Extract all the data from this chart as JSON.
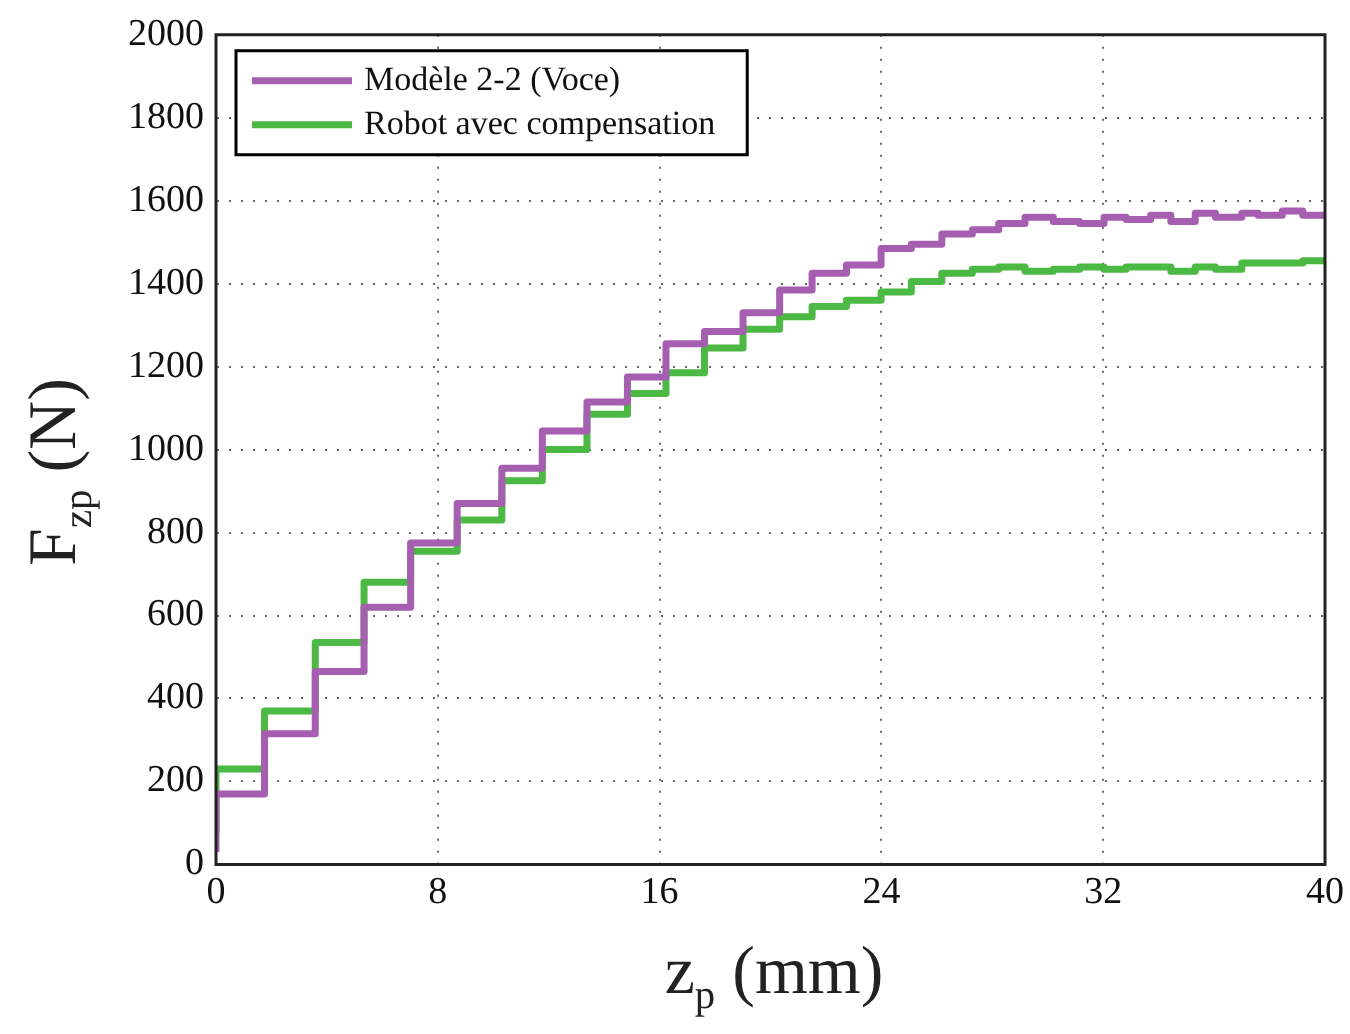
{
  "chart_data": {
    "type": "step",
    "xlabel": "z$_{p}$ (mm)",
    "ylabel": "F$_{zp}$ (N)",
    "x": [
      0,
      1.75,
      3.58,
      5.34,
      7.02,
      8.7,
      10.31,
      11.77,
      13.38,
      14.84,
      16.23,
      17.62,
      19.01,
      20.33,
      21.5,
      22.74,
      23.99,
      25.08,
      26.18,
      27.28,
      28.23,
      29.18,
      30.2,
      31.15,
      32.03,
      32.83,
      33.71,
      34.44,
      35.32,
      36.05,
      37,
      37.59,
      38.46,
      39.2,
      39.78,
      40
    ],
    "series": [
      {
        "name": "Modèle 2-2 (Voce)",
        "color": "#a65fb0",
        "values": [
          30,
          170,
          315,
          465,
          620,
          775,
          870,
          955,
          1045,
          1115,
          1175,
          1255,
          1285,
          1330,
          1385,
          1425,
          1445,
          1485,
          1495,
          1520,
          1530,
          1545,
          1560,
          1550,
          1545,
          1560,
          1555,
          1565,
          1550,
          1570,
          1560,
          1570,
          1565,
          1575,
          1565,
          1565
        ]
      },
      {
        "name": "Robot avec compensation",
        "color": "#4cb944",
        "values": [
          75,
          230,
          370,
          535,
          680,
          755,
          830,
          925,
          1000,
          1085,
          1135,
          1185,
          1245,
          1290,
          1320,
          1345,
          1360,
          1380,
          1405,
          1425,
          1435,
          1440,
          1430,
          1435,
          1440,
          1435,
          1440,
          1440,
          1430,
          1440,
          1435,
          1450,
          1450,
          1450,
          1455,
          1455
        ]
      }
    ],
    "xlim": [
      0,
      40
    ],
    "xticks": [
      0,
      8,
      16,
      24,
      32,
      40
    ],
    "ylim": [
      0,
      2000
    ],
    "yticks": [
      0,
      200,
      400,
      600,
      800,
      1000,
      1200,
      1400,
      1600,
      1800,
      2000
    ],
    "grid": true,
    "legend": "top left",
    "line_style": "solid",
    "marker": "none"
  }
}
